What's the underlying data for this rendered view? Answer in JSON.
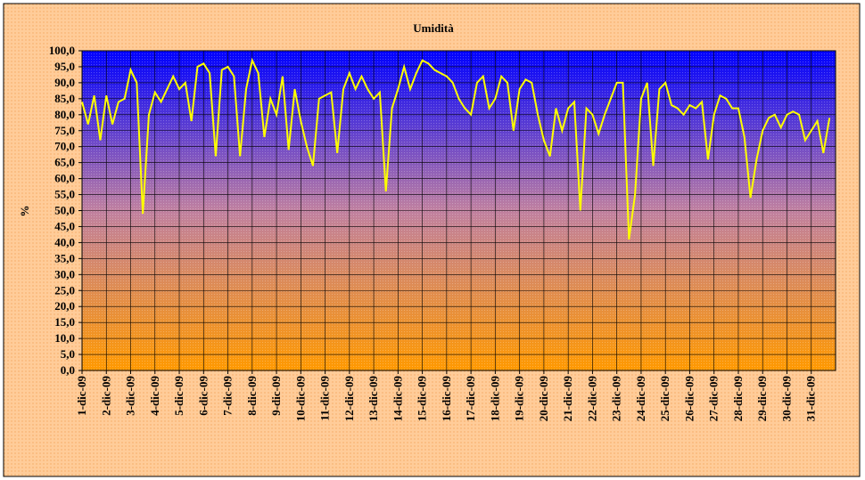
{
  "chart_data": {
    "type": "line",
    "title": "Umidità",
    "y_label": "%",
    "x": [
      1,
      1.25,
      1.5,
      1.75,
      2,
      2.25,
      2.5,
      2.75,
      3,
      3.25,
      3.5,
      3.75,
      4,
      4.25,
      4.5,
      4.75,
      5,
      5.25,
      5.5,
      5.75,
      6,
      6.25,
      6.5,
      6.75,
      7,
      7.25,
      7.5,
      7.75,
      8,
      8.25,
      8.5,
      8.75,
      9,
      9.25,
      9.5,
      9.75,
      10,
      10.25,
      10.5,
      10.75,
      11,
      11.25,
      11.5,
      11.75,
      12,
      12.25,
      12.5,
      12.75,
      13,
      13.25,
      13.5,
      13.75,
      14,
      14.25,
      14.5,
      14.75,
      15,
      15.25,
      15.5,
      15.75,
      16,
      16.25,
      16.5,
      16.75,
      17,
      17.25,
      17.5,
      17.75,
      18,
      18.25,
      18.5,
      18.75,
      19,
      19.25,
      19.5,
      19.75,
      20,
      20.25,
      20.5,
      20.75,
      21,
      21.25,
      21.5,
      21.75,
      22,
      22.25,
      22.5,
      22.75,
      23,
      23.25,
      23.5,
      23.75,
      24,
      24.25,
      24.5,
      24.75,
      25,
      25.25,
      25.5,
      25.75,
      26,
      26.25,
      26.5,
      26.75,
      27,
      27.25,
      27.5,
      27.75,
      28,
      28.25,
      28.5,
      28.75,
      29,
      29.25,
      29.5,
      29.75,
      30,
      30.25,
      30.5,
      30.75,
      31,
      31.25,
      31.5,
      31.75
    ],
    "series": [
      {
        "name": "Umidità",
        "color": "#ffff00",
        "values": [
          84,
          77,
          86,
          72,
          86,
          77,
          84,
          85,
          94,
          90,
          49,
          80,
          87,
          84,
          88,
          92,
          88,
          90,
          78,
          95,
          96,
          93,
          67,
          94,
          95,
          92,
          67,
          88,
          97,
          93,
          73,
          85,
          80,
          92,
          69,
          88,
          78,
          70,
          64,
          85,
          86,
          87,
          68,
          88,
          93,
          88,
          92,
          88,
          85,
          87,
          56,
          82,
          88,
          95,
          88,
          93,
          97,
          96,
          94,
          93,
          92,
          90,
          85,
          82,
          80,
          90,
          92,
          82,
          85,
          92,
          90,
          75,
          88,
          91,
          90,
          80,
          72,
          67,
          82,
          75,
          82,
          84,
          50,
          82,
          80,
          74,
          80,
          85,
          90,
          90,
          41,
          55,
          85,
          90,
          64,
          88,
          90,
          83,
          82,
          80,
          83,
          82,
          84,
          66,
          80,
          86,
          85,
          82,
          82,
          73,
          54,
          66,
          75,
          79,
          80,
          76,
          80,
          81,
          80,
          72,
          75,
          78,
          68,
          79
        ]
      }
    ],
    "xlim": [
      1,
      32
    ],
    "xticks": [
      {
        "value": 1,
        "label": "1-dic-09"
      },
      {
        "value": 2,
        "label": "2-dic-09"
      },
      {
        "value": 3,
        "label": "3-dic-09"
      },
      {
        "value": 4,
        "label": "4-dic-09"
      },
      {
        "value": 5,
        "label": "5-dic-09"
      },
      {
        "value": 6,
        "label": "6-dic-09"
      },
      {
        "value": 7,
        "label": "7-dic-09"
      },
      {
        "value": 8,
        "label": "8-dic-09"
      },
      {
        "value": 9,
        "label": "9-dic-09"
      },
      {
        "value": 10,
        "label": "10-dic-09"
      },
      {
        "value": 11,
        "label": "11-dic-09"
      },
      {
        "value": 12,
        "label": "12-dic-09"
      },
      {
        "value": 13,
        "label": "13-dic-09"
      },
      {
        "value": 14,
        "label": "14-dic-09"
      },
      {
        "value": 15,
        "label": "15-dic-09"
      },
      {
        "value": 16,
        "label": "16-dic-09"
      },
      {
        "value": 17,
        "label": "17-dic-09"
      },
      {
        "value": 18,
        "label": "18-dic-09"
      },
      {
        "value": 19,
        "label": "19-dic-09"
      },
      {
        "value": 20,
        "label": "20-dic-09"
      },
      {
        "value": 21,
        "label": "21-dic-09"
      },
      {
        "value": 22,
        "label": "22-dic-09"
      },
      {
        "value": 23,
        "label": "23-dic-09"
      },
      {
        "value": 24,
        "label": "24-dic-09"
      },
      {
        "value": 25,
        "label": "25-dic-09"
      },
      {
        "value": 26,
        "label": "26-dic-09"
      },
      {
        "value": 27,
        "label": "27-dic-09"
      },
      {
        "value": 28,
        "label": "28-dic-09"
      },
      {
        "value": 29,
        "label": "29-dic-09"
      },
      {
        "value": 30,
        "label": "30-dic-09"
      },
      {
        "value": 31,
        "label": "31-dic-09"
      }
    ],
    "ylim": [
      0,
      100
    ],
    "yticks": [
      {
        "value": 0,
        "label": "0,0"
      },
      {
        "value": 5,
        "label": "5,0"
      },
      {
        "value": 10,
        "label": "10,0"
      },
      {
        "value": 15,
        "label": "15,0"
      },
      {
        "value": 20,
        "label": "20,0"
      },
      {
        "value": 25,
        "label": "25,0"
      },
      {
        "value": 30,
        "label": "30,0"
      },
      {
        "value": 35,
        "label": "35,0"
      },
      {
        "value": 40,
        "label": "40,0"
      },
      {
        "value": 45,
        "label": "45,0"
      },
      {
        "value": 50,
        "label": "50,0"
      },
      {
        "value": 55,
        "label": "55,0"
      },
      {
        "value": 60,
        "label": "60,0"
      },
      {
        "value": 65,
        "label": "65,0"
      },
      {
        "value": 70,
        "label": "70,0"
      },
      {
        "value": 75,
        "label": "75,0"
      },
      {
        "value": 80,
        "label": "80,0"
      },
      {
        "value": 85,
        "label": "85,0"
      },
      {
        "value": 90,
        "label": "90,0"
      },
      {
        "value": 95,
        "label": "95,0"
      },
      {
        "value": 100,
        "label": "100,0"
      }
    ],
    "grid": true
  }
}
